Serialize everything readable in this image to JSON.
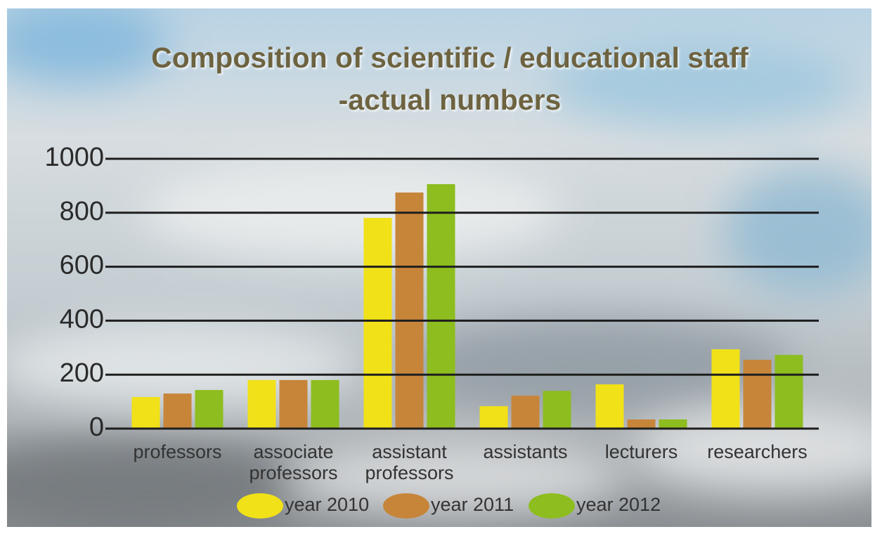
{
  "chart_data": {
    "type": "bar",
    "title": [
      "Composition of scientific / educational staff",
      "-actual numbers"
    ],
    "categories": [
      "professors",
      "associate professors",
      "assistant professors",
      "assistants",
      "lecturers",
      "researchers"
    ],
    "series": [
      {
        "name": "year 2010",
        "color": "#f1e118",
        "values": [
          117,
          180,
          781,
          83,
          164,
          294
        ]
      },
      {
        "name": "year 2011",
        "color": "#c7853a",
        "values": [
          130,
          180,
          875,
          122,
          34,
          255
        ]
      },
      {
        "name": "year 2012",
        "color": "#8dbd1e",
        "values": [
          143,
          180,
          906,
          140,
          34,
          273
        ]
      }
    ],
    "ylim": [
      0,
      1000
    ],
    "yticks": [
      0,
      200,
      400,
      600,
      800,
      1000
    ],
    "grid": true,
    "legend": "bottom"
  }
}
